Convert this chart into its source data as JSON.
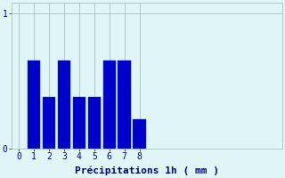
{
  "categories": [
    1,
    2,
    3,
    4,
    5,
    6,
    7,
    8
  ],
  "values": [
    0.65,
    0.38,
    0.65,
    0.38,
    0.38,
    0.65,
    0.65,
    0.22
  ],
  "bar_color": "#0000cc",
  "bar_edge_color": "#0033cc",
  "background_color": "#e0f5f5",
  "grid_color": "#9ab8b8",
  "text_color": "#00008b",
  "xlabel": "Précipitations 1h ( mm )",
  "xlabel_fontsize": 8,
  "ytick_labels": [
    "0",
    "1"
  ],
  "ytick_positions": [
    0,
    1
  ],
  "xlim": [
    -0.5,
    17.5
  ],
  "ylim": [
    0,
    1.08
  ],
  "bar_width": 0.85,
  "xtick_positions": [
    0,
    1,
    2,
    3,
    4,
    5,
    6,
    7,
    8
  ],
  "xtick_labels": [
    "0",
    "1",
    "2",
    "3",
    "4",
    "5",
    "6",
    "7",
    "8"
  ]
}
